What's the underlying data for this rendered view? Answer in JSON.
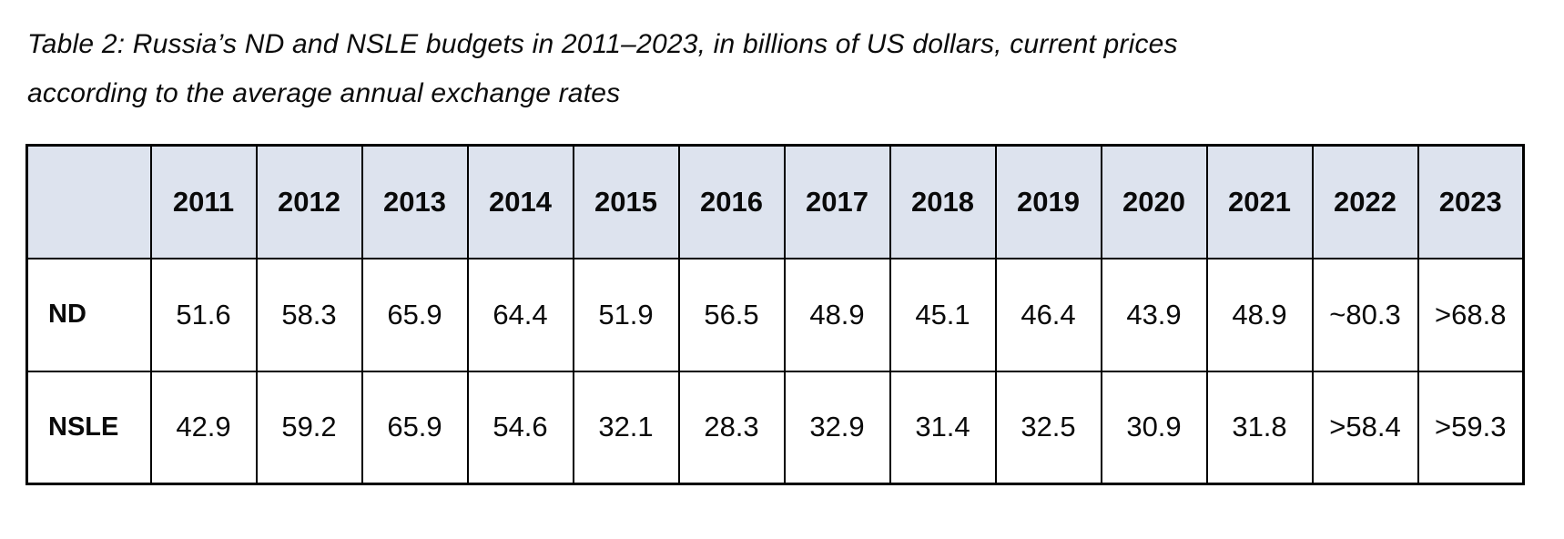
{
  "title": {
    "line1": "Table 2: Russia’s ND and NSLE budgets in 2011–2023, in billions of US dollars, current prices",
    "line2": "according to the average annual exchange rates"
  },
  "table": {
    "corner_label": "",
    "years": [
      "2011",
      "2012",
      "2013",
      "2014",
      "2015",
      "2016",
      "2017",
      "2018",
      "2019",
      "2020",
      "2021",
      "2022",
      "2023"
    ],
    "rows": [
      {
        "label": "ND",
        "values": [
          "51.6",
          "58.3",
          "65.9",
          "64.4",
          "51.9",
          "56.5",
          "48.9",
          "45.1",
          "46.4",
          "43.9",
          "48.9",
          "~80.3",
          ">68.8"
        ]
      },
      {
        "label": "NSLE",
        "values": [
          "42.9",
          "59.2",
          "65.9",
          "54.6",
          "32.1",
          "28.3",
          "32.9",
          "31.4",
          "32.5",
          "30.9",
          "31.8",
          ">58.4",
          ">59.3"
        ]
      }
    ]
  },
  "colors": {
    "header_background": "#dde3ee",
    "border": "#000000",
    "text": "#0a0a0a",
    "page_background": "#ffffff"
  },
  "chart_data": {
    "type": "table",
    "title": "Table 2: Russia’s ND and NSLE budgets in 2011–2023, in billions of US dollars, current prices according to the average annual exchange rates",
    "categories": [
      "2011",
      "2012",
      "2013",
      "2014",
      "2015",
      "2016",
      "2017",
      "2018",
      "2019",
      "2020",
      "2021",
      "2022",
      "2023"
    ],
    "series": [
      {
        "name": "ND",
        "values": [
          "51.6",
          "58.3",
          "65.9",
          "64.4",
          "51.9",
          "56.5",
          "48.9",
          "45.1",
          "46.4",
          "43.9",
          "48.9",
          "~80.3",
          ">68.8"
        ]
      },
      {
        "name": "NSLE",
        "values": [
          "42.9",
          "59.2",
          "65.9",
          "54.6",
          "32.1",
          "28.3",
          "32.9",
          "31.4",
          "32.5",
          "30.9",
          "31.8",
          ">58.4",
          ">59.3"
        ]
      }
    ]
  }
}
